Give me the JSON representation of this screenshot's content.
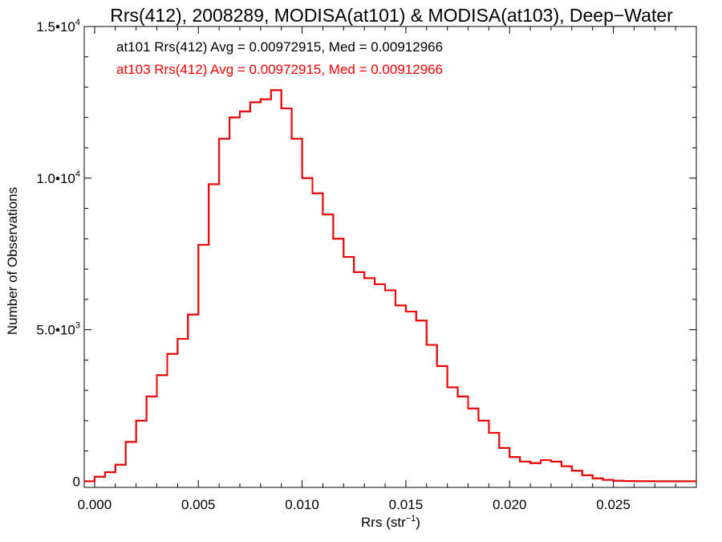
{
  "chart_data": {
    "type": "line",
    "title": "Rrs(412), 2008289, MODISA(at101) & MODISA(at103), Deep−Water",
    "xlabel_main": "Rrs (str",
    "xlabel_sup": "−1",
    "xlabel_end": ")",
    "ylabel": "Number of Observations",
    "xlim": [
      -0.0005,
      0.029
    ],
    "ylim": [
      -200,
      15000
    ],
    "grid": false,
    "x_ticks": [
      {
        "value": 0.0,
        "label": "0.000"
      },
      {
        "value": 0.005,
        "label": "0.005"
      },
      {
        "value": 0.01,
        "label": "0.010"
      },
      {
        "value": 0.015,
        "label": "0.015"
      },
      {
        "value": 0.02,
        "label": "0.020"
      },
      {
        "value": 0.025,
        "label": "0.025"
      }
    ],
    "y_ticks": [
      {
        "value": 0,
        "label": "0",
        "sup": ""
      },
      {
        "value": 5000,
        "label": "5.0•10",
        "sup": "3"
      },
      {
        "value": 10000,
        "label": "1.0•10",
        "sup": "4"
      },
      {
        "value": 15000,
        "label": "1.5•10",
        "sup": "4"
      }
    ],
    "annotations": [
      {
        "text": "at101 Rrs(412) Avg = 0.00972915, Med = 0.00912966",
        "color": "#000000"
      },
      {
        "text": "at103 Rrs(412) Avg = 0.00972915, Med = 0.00912966",
        "color": "#ff0000"
      }
    ],
    "series": [
      {
        "name": "at101",
        "color": "#000000",
        "x": [
          -0.0005,
          0.0,
          0.0005,
          0.001,
          0.0015,
          0.002,
          0.0025,
          0.003,
          0.0035,
          0.004,
          0.0045,
          0.005,
          0.0055,
          0.006,
          0.0065,
          0.007,
          0.0075,
          0.008,
          0.0085,
          0.009,
          0.0095,
          0.01,
          0.0105,
          0.011,
          0.0115,
          0.012,
          0.0125,
          0.013,
          0.0135,
          0.014,
          0.0145,
          0.015,
          0.0155,
          0.016,
          0.0165,
          0.017,
          0.0175,
          0.018,
          0.0185,
          0.019,
          0.0195,
          0.02,
          0.0205,
          0.021,
          0.0215,
          0.022,
          0.0225,
          0.023,
          0.0235,
          0.024,
          0.0245,
          0.025,
          0.0255,
          0.026,
          0.027,
          0.028,
          0.029
        ],
        "y": [
          0,
          150,
          300,
          550,
          1300,
          2000,
          2800,
          3500,
          4200,
          4700,
          5500,
          7800,
          9800,
          11300,
          12000,
          12200,
          12500,
          12600,
          12900,
          12300,
          11300,
          10000,
          9500,
          8800,
          8000,
          7400,
          6900,
          6700,
          6500,
          6300,
          5800,
          5600,
          5300,
          4500,
          3800,
          3100,
          2800,
          2400,
          2000,
          1600,
          1100,
          800,
          650,
          600,
          700,
          650,
          500,
          350,
          200,
          100,
          50,
          20,
          10,
          5,
          0,
          0,
          0
        ]
      },
      {
        "name": "at103",
        "color": "#ff0000",
        "x": [
          -0.0005,
          0.0,
          0.0005,
          0.001,
          0.0015,
          0.002,
          0.0025,
          0.003,
          0.0035,
          0.004,
          0.0045,
          0.005,
          0.0055,
          0.006,
          0.0065,
          0.007,
          0.0075,
          0.008,
          0.0085,
          0.009,
          0.0095,
          0.01,
          0.0105,
          0.011,
          0.0115,
          0.012,
          0.0125,
          0.013,
          0.0135,
          0.014,
          0.0145,
          0.015,
          0.0155,
          0.016,
          0.0165,
          0.017,
          0.0175,
          0.018,
          0.0185,
          0.019,
          0.0195,
          0.02,
          0.0205,
          0.021,
          0.0215,
          0.022,
          0.0225,
          0.023,
          0.0235,
          0.024,
          0.0245,
          0.025,
          0.0255,
          0.026,
          0.027,
          0.028,
          0.029
        ],
        "y": [
          0,
          150,
          300,
          550,
          1300,
          2000,
          2800,
          3500,
          4200,
          4700,
          5500,
          7800,
          9800,
          11300,
          12000,
          12200,
          12500,
          12600,
          12900,
          12300,
          11300,
          10000,
          9500,
          8800,
          8000,
          7400,
          6900,
          6700,
          6500,
          6300,
          5800,
          5600,
          5300,
          4500,
          3800,
          3100,
          2800,
          2400,
          2000,
          1600,
          1100,
          800,
          650,
          600,
          700,
          650,
          500,
          350,
          200,
          100,
          50,
          20,
          10,
          5,
          0,
          0,
          0
        ]
      }
    ]
  }
}
